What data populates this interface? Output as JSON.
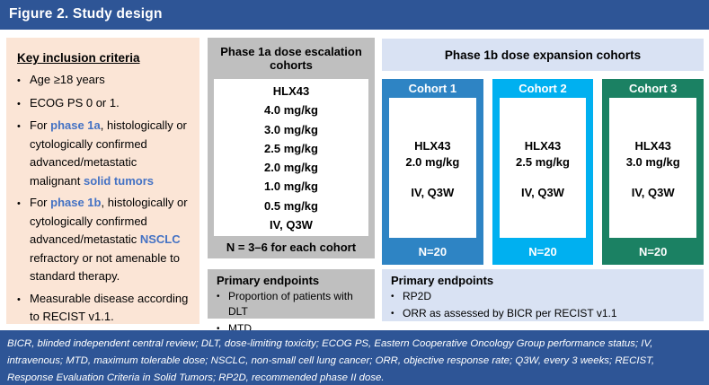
{
  "title": "Figure 2. Study design",
  "colors": {
    "banner_blue": "#2E5596",
    "left_panel_peach": "#FBE5D6",
    "gray_panel": "#BFBFBF",
    "light_blue_panel": "#D9E2F3",
    "accent_text_blue": "#4472C4",
    "cohort1_blue": "#2E84C4",
    "cohort2_cyan": "#00B0F0",
    "cohort3_green": "#1B8163"
  },
  "inclusion": {
    "heading": "Key inclusion criteria",
    "bullet1": "Age ≥18 years",
    "bullet2": "ECOG PS 0 or 1.",
    "bullet3": {
      "s1": "For ",
      "s2": "phase 1a",
      "s3": ", histologically or cytologically confirmed advanced/metastatic malignant ",
      "s4": "solid tumors"
    },
    "bullet4": {
      "s1": "For ",
      "s2": "phase 1b",
      "s3": ", histologically or cytologically confirmed advanced/metastatic ",
      "s4": "NSCLC",
      "s5": " refractory or not amenable to standard therapy."
    },
    "bullet5": "Measurable disease according to RECIST v1.1."
  },
  "phase1a": {
    "header": "Phase 1a dose escalation cohorts",
    "drug": "HLX43",
    "doses": [
      "4.0 mg/kg",
      "3.0 mg/kg",
      "2.5 mg/kg",
      "2.0 mg/kg",
      "1.0 mg/kg",
      "0.5 mg/kg"
    ],
    "route": "IV, Q3W",
    "cohort_note": "N = 3–6 for each cohort",
    "endpoints": {
      "heading": "Primary endpoints",
      "bullet1": "Proportion of patients with DLT",
      "bullet2": "MTD"
    }
  },
  "phase1b": {
    "header": "Phase 1b dose expansion cohorts",
    "cohorts": [
      {
        "label": "Cohort 1",
        "drug": "HLX43",
        "dose": "2.0 mg/kg",
        "route": "IV, Q3W",
        "n": "N=20",
        "color": "#2E84C4"
      },
      {
        "label": "Cohort 2",
        "drug": "HLX43",
        "dose": "2.5 mg/kg",
        "route": "IV, Q3W",
        "n": "N=20",
        "color": "#00B0F0"
      },
      {
        "label": "Cohort 3",
        "drug": "HLX43",
        "dose": "3.0 mg/kg",
        "route": "IV, Q3W",
        "n": "N=20",
        "color": "#1B8163"
      }
    ],
    "endpoints": {
      "heading": "Primary endpoints",
      "bullet1": "RP2D",
      "bullet2": "ORR as assessed by BICR per RECIST v1.1"
    }
  },
  "footnote": "BICR, blinded independent central review; DLT, dose-limiting toxicity; ECOG PS, Eastern Cooperative Oncology Group performance status; IV, intravenous; MTD, maximum tolerable dose; NSCLC, non-small cell lung cancer; ORR, objective response rate; Q3W, every 3 weeks; RECIST, Response Evaluation Criteria in Solid Tumors; RP2D, recommended phase II dose."
}
